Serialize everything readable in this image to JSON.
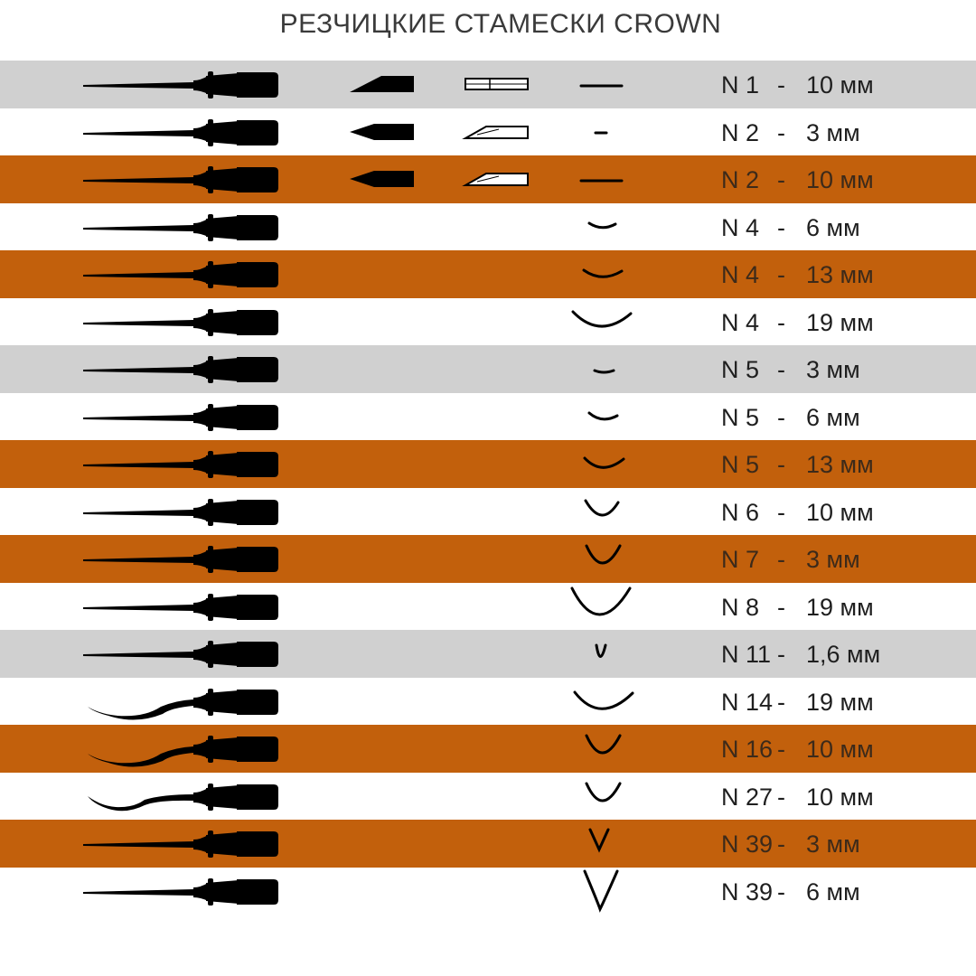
{
  "title": "РЕЗЧИЦКИЕ СТАМЕСКИ CROWN",
  "colors": {
    "grey": "#d0d0d0",
    "orange": "#c2600c",
    "white": "#ffffff",
    "ink": "#000000"
  },
  "rows": [
    {
      "band": "grey",
      "tool": "straight",
      "profile": "flat-wide",
      "bevel": "skew",
      "box": "split",
      "code": "N 1",
      "sep": "-",
      "size": "10 мм"
    },
    {
      "band": "white",
      "tool": "straight",
      "profile": "flat-short",
      "bevel": "point",
      "box": "diagonal",
      "code": "N 2",
      "sep": "-",
      "size": "3 мм"
    },
    {
      "band": "orange",
      "tool": "straight",
      "profile": "flat-wide",
      "bevel": "point",
      "box": "diagonal",
      "code": "N 2",
      "sep": "-",
      "size": "10 мм"
    },
    {
      "band": "white",
      "tool": "straight",
      "profile": "curve-shallow-small",
      "bevel": "",
      "box": "",
      "code": "N 4",
      "sep": "-",
      "size": "6 мм"
    },
    {
      "band": "orange",
      "tool": "straight",
      "profile": "curve-shallow-mid",
      "bevel": "",
      "box": "",
      "code": "N 4",
      "sep": "-",
      "size": "13 мм"
    },
    {
      "band": "white",
      "tool": "straight",
      "profile": "curve-shallow-large",
      "bevel": "",
      "box": "",
      "code": "N 4",
      "sep": "-",
      "size": "19 мм"
    },
    {
      "band": "grey",
      "tool": "straight",
      "profile": "curve-tiny",
      "bevel": "",
      "box": "",
      "code": "N 5",
      "sep": "-",
      "size": "3 мм"
    },
    {
      "band": "white",
      "tool": "straight",
      "profile": "curve-small",
      "bevel": "",
      "box": "",
      "code": "N 5",
      "sep": "-",
      "size": "6 мм"
    },
    {
      "band": "orange",
      "tool": "straight",
      "profile": "curve-mid",
      "bevel": "",
      "box": "",
      "code": "N 5",
      "sep": "-",
      "size": "13 мм"
    },
    {
      "band": "white",
      "tool": "straight",
      "profile": "curve-deep-small",
      "bevel": "",
      "box": "",
      "code": "N 6",
      "sep": "-",
      "size": "10 мм"
    },
    {
      "band": "orange",
      "tool": "straight",
      "profile": "curve-deep-mid",
      "bevel": "",
      "box": "",
      "code": "N 7",
      "sep": "-",
      "size": "3 мм"
    },
    {
      "band": "white",
      "tool": "straight",
      "profile": "u-large",
      "bevel": "",
      "box": "",
      "code": "N 8",
      "sep": "-",
      "size": "19 мм"
    },
    {
      "band": "grey",
      "tool": "straight",
      "profile": "u-tiny",
      "bevel": "",
      "box": "",
      "code": "N 11",
      "sep": "-",
      "size": "1,6 мм"
    },
    {
      "band": "white",
      "tool": "bent-long",
      "profile": "curve-wide",
      "bevel": "",
      "box": "",
      "code": "N 14",
      "sep": "-",
      "size": "19 мм"
    },
    {
      "band": "orange",
      "tool": "bent-long",
      "profile": "curve-deep-mid",
      "bevel": "",
      "box": "",
      "code": "N 16",
      "sep": "-",
      "size": "10 мм"
    },
    {
      "band": "white",
      "tool": "bent-short",
      "profile": "curve-deep-mid",
      "bevel": "",
      "box": "",
      "code": "N 27",
      "sep": "-",
      "size": "10 мм"
    },
    {
      "band": "orange",
      "tool": "straight",
      "profile": "v-small",
      "bevel": "",
      "box": "",
      "code": "N 39",
      "sep": "-",
      "size": "3 мм"
    },
    {
      "band": "white",
      "tool": "straight",
      "profile": "v-large",
      "bevel": "",
      "box": "",
      "code": "N 39",
      "sep": "-",
      "size": "6 мм"
    }
  ]
}
